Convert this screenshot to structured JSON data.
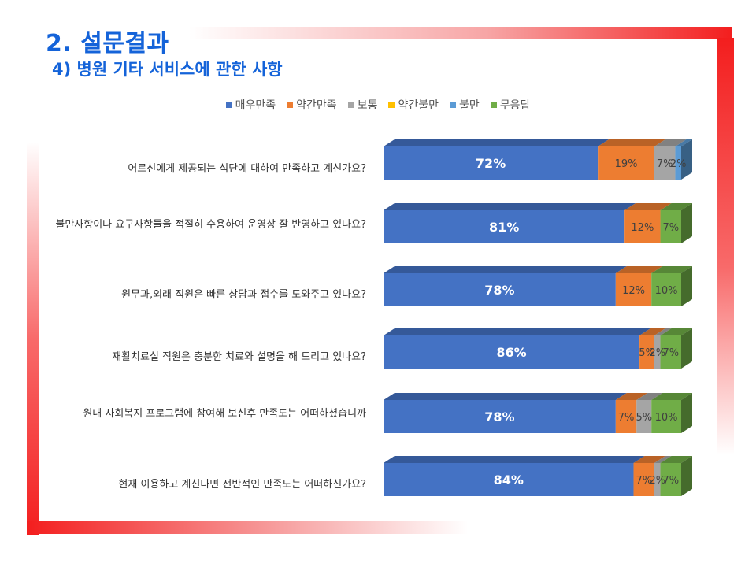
{
  "title": "2. 설문결과",
  "subtitle": "4) 병원 기타 서비스에 관한 사항",
  "legend": [
    {
      "label": "매우만족",
      "color": "#4472c4"
    },
    {
      "label": "약간만족",
      "color": "#ed7d31"
    },
    {
      "label": "보통",
      "color": "#a5a5a5"
    },
    {
      "label": "약간불만",
      "color": "#ffc000"
    },
    {
      "label": "불만",
      "color": "#5b9bd5"
    },
    {
      "label": "무응답",
      "color": "#70ad47"
    }
  ],
  "chart_data": {
    "type": "bar",
    "orientation": "horizontal",
    "stacked": true,
    "percent_stacked": true,
    "style": "3d",
    "legend_position": "top",
    "grid": false,
    "categories": [
      "어르신에게 제공되는 식단에 대하여 만족하고 계신가요?",
      "불만사항이나 요구사항들을 적절히 수용하여 운영상 잘 반영하고 있나요?",
      "원무과,외래 직원은 빠른 상담과 접수를 도와주고 있나요?",
      "재활치료실 직원은 충분한 치료와 설명을 해 드리고 있나요?",
      "원내 사회복지 프로그램에 참여해 보신후 만족도는 어떠하셨습니까",
      "현재 이용하고 계신다면 전반적인 만족도는 어떠하신가요?"
    ],
    "series": [
      {
        "name": "매우만족",
        "color": "#4472c4",
        "values": [
          72,
          81,
          78,
          86,
          78,
          84
        ]
      },
      {
        "name": "약간만족",
        "color": "#ed7d31",
        "values": [
          19,
          12,
          12,
          5,
          7,
          7
        ]
      },
      {
        "name": "보통",
        "color": "#a5a5a5",
        "values": [
          7,
          0,
          0,
          2,
          5,
          2
        ]
      },
      {
        "name": "약간불만",
        "color": "#ffc000",
        "values": [
          0,
          0,
          0,
          0,
          0,
          0
        ]
      },
      {
        "name": "불만",
        "color": "#5b9bd5",
        "values": [
          2,
          0,
          0,
          0,
          0,
          0
        ]
      },
      {
        "name": "무응답",
        "color": "#70ad47",
        "values": [
          0,
          7,
          10,
          7,
          10,
          7
        ]
      }
    ],
    "data_labels": [
      [
        "72%",
        "19%",
        "7%",
        "",
        "2%",
        ""
      ],
      [
        "81%",
        "12%",
        "",
        "",
        "",
        "7%"
      ],
      [
        "78%",
        "12%",
        "",
        "",
        "",
        "10%"
      ],
      [
        "86%",
        "5%",
        "2%",
        "",
        "",
        "7%"
      ],
      [
        "78%",
        "7%",
        "5%",
        "",
        "",
        "10%"
      ],
      [
        "84%",
        "7%",
        "2%",
        "",
        "",
        "7%"
      ]
    ]
  }
}
